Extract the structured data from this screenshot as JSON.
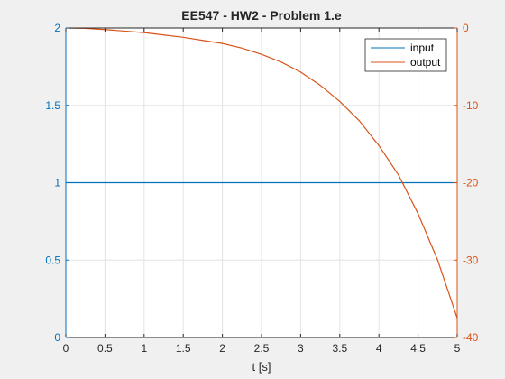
{
  "chart_data": {
    "type": "line",
    "title": "EE547 - HW2 - Problem 1.e",
    "xlabel": "t [s]",
    "ylabel_left": "",
    "ylabel_right": "",
    "xlim": [
      0,
      5
    ],
    "ylim_left": [
      0,
      2
    ],
    "ylim_right": [
      -40,
      0
    ],
    "x_ticks": [
      0,
      0.5,
      1,
      1.5,
      2,
      2.5,
      3,
      3.5,
      4,
      4.5,
      5
    ],
    "x_tick_labels": [
      "0",
      "0.5",
      "1",
      "1.5",
      "2",
      "2.5",
      "3",
      "3.5",
      "4",
      "4.5",
      "5"
    ],
    "y_left_ticks": [
      0,
      0.5,
      1,
      1.5,
      2
    ],
    "y_left_tick_labels": [
      "0",
      "0.5",
      "1",
      "1.5",
      "2"
    ],
    "y_right_ticks": [
      -40,
      -30,
      -20,
      -10,
      0
    ],
    "y_right_tick_labels": [
      "-40",
      "-30",
      "-20",
      "-10",
      "0"
    ],
    "grid": true,
    "legend_position": "top-right",
    "colors": {
      "left_axis": "#0072BD",
      "right_axis": "#D95319",
      "grid": "#e3e3e3",
      "plot_bg": "#ffffff",
      "figure_bg": "#f0f0f0",
      "legend_border": "#262626"
    },
    "series": [
      {
        "name": "input",
        "axis": "left",
        "color": "#0072BD",
        "x": [
          0,
          5
        ],
        "y": [
          1,
          1
        ]
      },
      {
        "name": "output",
        "axis": "right",
        "color": "#D95319",
        "x": [
          0,
          0.25,
          0.5,
          0.75,
          1,
          1.25,
          1.5,
          1.75,
          2,
          2.25,
          2.5,
          2.75,
          3,
          3.25,
          3.5,
          3.75,
          4,
          4.25,
          4.5,
          4.75,
          5
        ],
        "y": [
          0,
          -0.05,
          -0.2,
          -0.4,
          -0.6,
          -0.9,
          -1.2,
          -1.6,
          -2.0,
          -2.6,
          -3.4,
          -4.4,
          -5.7,
          -7.4,
          -9.5,
          -12.0,
          -15.2,
          -19.0,
          -24.0,
          -30.0,
          -37.5
        ]
      }
    ]
  }
}
